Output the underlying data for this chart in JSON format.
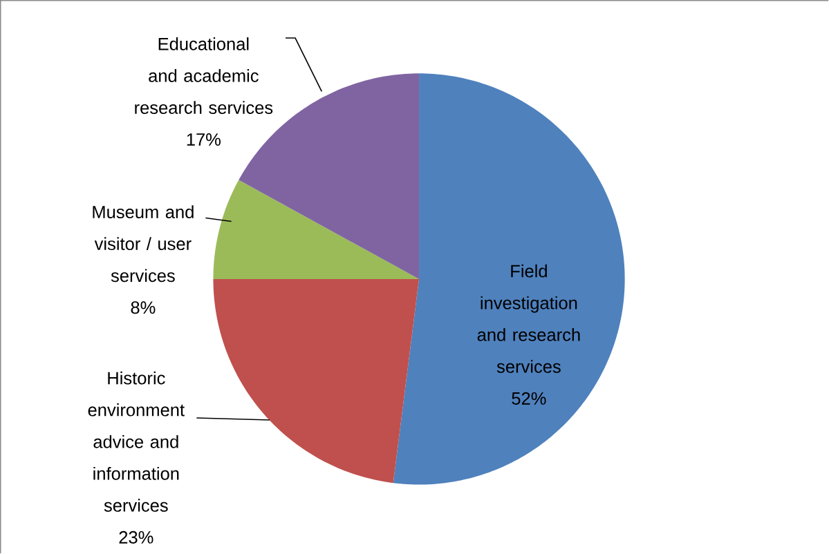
{
  "chart_data": {
    "type": "pie",
    "categories": [
      "Field investigation and research services",
      "Historic environment advice and information services",
      "Museum and visitor / user services",
      "Educational and academic research services"
    ],
    "values": [
      52,
      23,
      8,
      17
    ],
    "value_labels": [
      "52%",
      "23%",
      "8%",
      "17%"
    ],
    "colors": [
      "#4f81bd",
      "#c0504d",
      "#9bbb59",
      "#8064a2"
    ]
  }
}
